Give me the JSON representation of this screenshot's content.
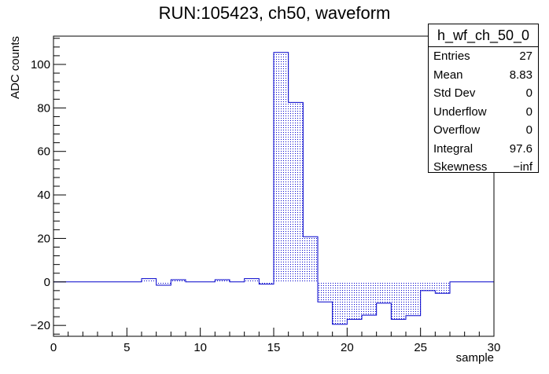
{
  "title": "RUN:105423, ch50, waveform",
  "stats": {
    "name": "h_wf_ch_50_0",
    "rows": [
      {
        "label": "Entries",
        "value": "27"
      },
      {
        "label": "Mean",
        "value": "8.83"
      },
      {
        "label": "Std Dev",
        "value": "0"
      },
      {
        "label": "Underflow",
        "value": "0"
      },
      {
        "label": "Overflow",
        "value": "0"
      },
      {
        "label": "Integral",
        "value": "97.6"
      },
      {
        "label": "Skewness",
        "value": "−inf"
      }
    ]
  },
  "chart_data": {
    "type": "histogram",
    "xlabel": "sample",
    "ylabel": "ADC counts",
    "xlim": [
      0,
      30
    ],
    "ylim": [
      -25,
      113
    ],
    "x_ticks": [
      0,
      5,
      10,
      15,
      20,
      25,
      30
    ],
    "y_ticks": [
      -20,
      0,
      20,
      40,
      60,
      80,
      100
    ],
    "bin_width": 1,
    "bin_edges_start": 0,
    "values": [
      0,
      0,
      0,
      0,
      0,
      0,
      1.5,
      -1.5,
      1,
      0,
      0,
      1,
      0,
      1.5,
      -1,
      105.5,
      82.5,
      20.8,
      -9.2,
      -19.5,
      -17.2,
      -15.3,
      -9.8,
      -17.2,
      -15.5,
      -4,
      -5.2,
      0,
      0,
      0
    ],
    "line_color": "#0000cc",
    "fill": "dotted"
  }
}
